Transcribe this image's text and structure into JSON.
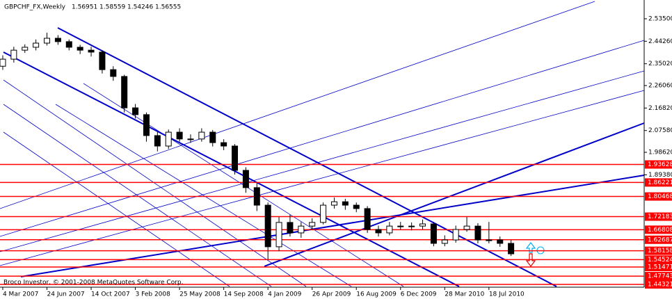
{
  "chart_data": {
    "type": "candlestick",
    "title": "GBPCHF_FX,Weekly",
    "header_values": [
      1.56951,
      1.58559,
      1.54246,
      1.56555
    ],
    "footer": "Broco Investor, © 2001-2008 MetaQuotes Software Corp.",
    "color": "#000000",
    "line_color": "#ff0000",
    "x": [
      0,
      4,
      8,
      12,
      16,
      20,
      24,
      28,
      32,
      36,
      40,
      44,
      48,
      52,
      56,
      60,
      64,
      68,
      72,
      76,
      80,
      84,
      88,
      92,
      96,
      100,
      104,
      108,
      112,
      116,
      120,
      124,
      128,
      132,
      136,
      140,
      144,
      148,
      152,
      156,
      160,
      164,
      168,
      172,
      176,
      180,
      184
    ],
    "open": [
      2.34,
      2.369,
      2.406,
      2.418,
      2.435,
      2.455,
      2.441,
      2.418,
      2.406,
      2.398,
      2.326,
      2.298,
      2.169,
      2.141,
      2.055,
      2.012,
      2.069,
      2.041,
      2.041,
      2.069,
      2.026,
      2.012,
      1.912,
      1.841,
      1.769,
      1.598,
      1.698,
      1.655,
      1.683,
      1.698,
      1.769,
      1.783,
      1.769,
      1.755,
      1.669,
      1.655,
      1.683,
      1.683,
      1.683,
      1.692,
      1.612,
      1.626,
      1.669,
      1.683,
      1.626,
      1.626,
      1.612
    ],
    "high": [
      2.385,
      2.42,
      2.43,
      2.45,
      2.478,
      2.468,
      2.45,
      2.428,
      2.42,
      2.405,
      2.34,
      2.305,
      2.185,
      2.15,
      2.07,
      2.08,
      2.085,
      2.06,
      2.085,
      2.078,
      2.04,
      2.02,
      1.925,
      1.86,
      1.78,
      1.72,
      1.73,
      1.7,
      1.715,
      1.78,
      1.8,
      1.795,
      1.78,
      1.765,
      1.685,
      1.7,
      1.7,
      1.698,
      1.71,
      1.7,
      1.645,
      1.685,
      1.72,
      1.695,
      1.7,
      1.64,
      1.625
    ],
    "low": [
      2.325,
      2.355,
      2.395,
      2.405,
      2.425,
      2.428,
      2.405,
      2.39,
      2.38,
      2.31,
      2.28,
      2.15,
      2.125,
      2.03,
      1.99,
      2.0,
      2.03,
      2.025,
      2.03,
      2.01,
      1.995,
      1.895,
      1.82,
      1.745,
      1.545,
      1.58,
      1.64,
      1.635,
      1.67,
      1.69,
      1.755,
      1.75,
      1.74,
      1.655,
      1.64,
      1.645,
      1.668,
      1.665,
      1.67,
      1.6,
      1.6,
      1.615,
      1.66,
      1.612,
      1.612,
      1.598,
      1.56
    ],
    "close": [
      2.369,
      2.406,
      2.418,
      2.435,
      2.455,
      2.441,
      2.418,
      2.406,
      2.398,
      2.326,
      2.298,
      2.169,
      2.141,
      2.055,
      2.012,
      2.069,
      2.041,
      2.041,
      2.069,
      2.026,
      2.012,
      1.912,
      1.841,
      1.769,
      1.598,
      1.698,
      1.655,
      1.683,
      1.698,
      1.769,
      1.783,
      1.769,
      1.755,
      1.669,
      1.655,
      1.683,
      1.683,
      1.683,
      1.692,
      1.612,
      1.626,
      1.669,
      1.683,
      1.626,
      1.626,
      1.612,
      1.569
    ],
    "xlim": [
      -1,
      232.2
    ],
    "xticks": [
      {
        "value": 0,
        "label": "4 Mar 2007"
      },
      {
        "value": 16,
        "label": "24 Jun 2007"
      },
      {
        "value": 32,
        "label": "14 Oct 2007"
      },
      {
        "value": 48,
        "label": "3 Feb 2008"
      },
      {
        "value": 64,
        "label": "25 May 2008"
      },
      {
        "value": 80,
        "label": "14 Sep 2008"
      },
      {
        "value": 96,
        "label": "4 Jan 2009"
      },
      {
        "value": 112,
        "label": "26 Apr 2009"
      },
      {
        "value": 128,
        "label": "16 Aug 2009"
      },
      {
        "value": 144,
        "label": "6 Dec 2009"
      },
      {
        "value": 160,
        "label": "28 Mar 2010"
      },
      {
        "value": 176,
        "label": "18 Jul 2010"
      }
    ],
    "ylim": [
      1.4319,
      2.6122
    ],
    "yticks": [
      {
        "value": 2.535,
        "label": "2.53500"
      },
      {
        "value": 2.4426,
        "label": "2.44260"
      },
      {
        "value": 2.3502,
        "label": "2.35020"
      },
      {
        "value": 2.2606,
        "label": "2.26060"
      },
      {
        "value": 2.1682,
        "label": "2.16820"
      },
      {
        "value": 2.0758,
        "label": "2.07580"
      },
      {
        "value": 1.9862,
        "label": "1.98620"
      },
      {
        "value": 1.8938,
        "label": "1.89380"
      }
    ],
    "hlines": [
      {
        "value": 1.93628,
        "label": "1.93628"
      },
      {
        "value": 1.86221,
        "label": "1.86221"
      },
      {
        "value": 1.80468,
        "label": "1.80468"
      },
      {
        "value": 1.72183,
        "label": "1.72183"
      },
      {
        "value": 1.66808,
        "label": "1.66808"
      },
      {
        "value": 1.62687,
        "label": "1.62687"
      },
      {
        "value": 1.58158,
        "label": "1.58158"
      },
      {
        "value": 1.54524,
        "label": "1.54524"
      },
      {
        "value": 1.51471,
        "label": "1.51471"
      },
      {
        "value": 1.47743,
        "label": "1.47743"
      },
      {
        "value": 1.44321,
        "label": "1.44321"
      }
    ]
  }
}
